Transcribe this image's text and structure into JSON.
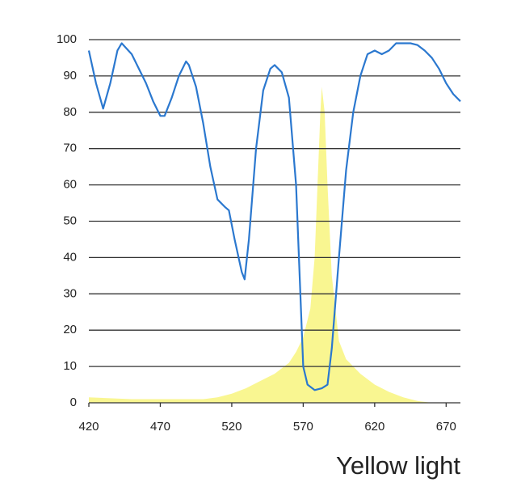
{
  "chart_data": {
    "type": "line",
    "caption": "Yellow light",
    "xlim": [
      420,
      680
    ],
    "ylim": [
      0,
      100
    ],
    "xticks": [
      420,
      470,
      520,
      570,
      620,
      670
    ],
    "yticks": [
      0,
      10,
      20,
      30,
      40,
      50,
      60,
      70,
      80,
      90,
      100
    ],
    "grid": true,
    "series": [
      {
        "type": "area",
        "color": "#f8f57e",
        "x": [
          420,
          450,
          480,
          500,
          510,
          520,
          530,
          540,
          550,
          560,
          565,
          570,
          575,
          578,
          580,
          582,
          583,
          585,
          587,
          590,
          595,
          600,
          610,
          620,
          630,
          640,
          650,
          660
        ],
        "values": [
          1.5,
          1,
          1,
          1,
          1.5,
          2.5,
          4,
          6,
          8,
          11,
          14,
          18,
          26,
          40,
          60,
          80,
          87,
          80,
          60,
          35,
          17,
          12,
          8,
          5,
          3,
          1.5,
          0.5,
          0
        ]
      },
      {
        "type": "line",
        "color": "#2b78cf",
        "x": [
          420,
          425,
          430,
          435,
          440,
          443,
          450,
          460,
          465,
          470,
          473,
          478,
          483,
          488,
          490,
          495,
          500,
          505,
          510,
          515,
          518,
          522,
          527,
          529,
          532,
          537,
          542,
          547,
          550,
          555,
          560,
          565,
          568,
          570,
          573,
          578,
          583,
          587,
          590,
          595,
          600,
          605,
          610,
          615,
          620,
          625,
          630,
          635,
          640,
          645,
          650,
          655,
          660,
          665,
          670,
          675,
          680
        ],
        "values": [
          97,
          88,
          81,
          88,
          97,
          99,
          96,
          88,
          83,
          79,
          79,
          84,
          90,
          94,
          93,
          87,
          77,
          65,
          56,
          54,
          53,
          45,
          36,
          34,
          45,
          70,
          86,
          92,
          93,
          91,
          84,
          60,
          30,
          10,
          5,
          3.5,
          4,
          5,
          15,
          40,
          64,
          80,
          90,
          96,
          97,
          96,
          97,
          99,
          99,
          99,
          98.5,
          97,
          95,
          92,
          88,
          85,
          83
        ]
      }
    ]
  }
}
